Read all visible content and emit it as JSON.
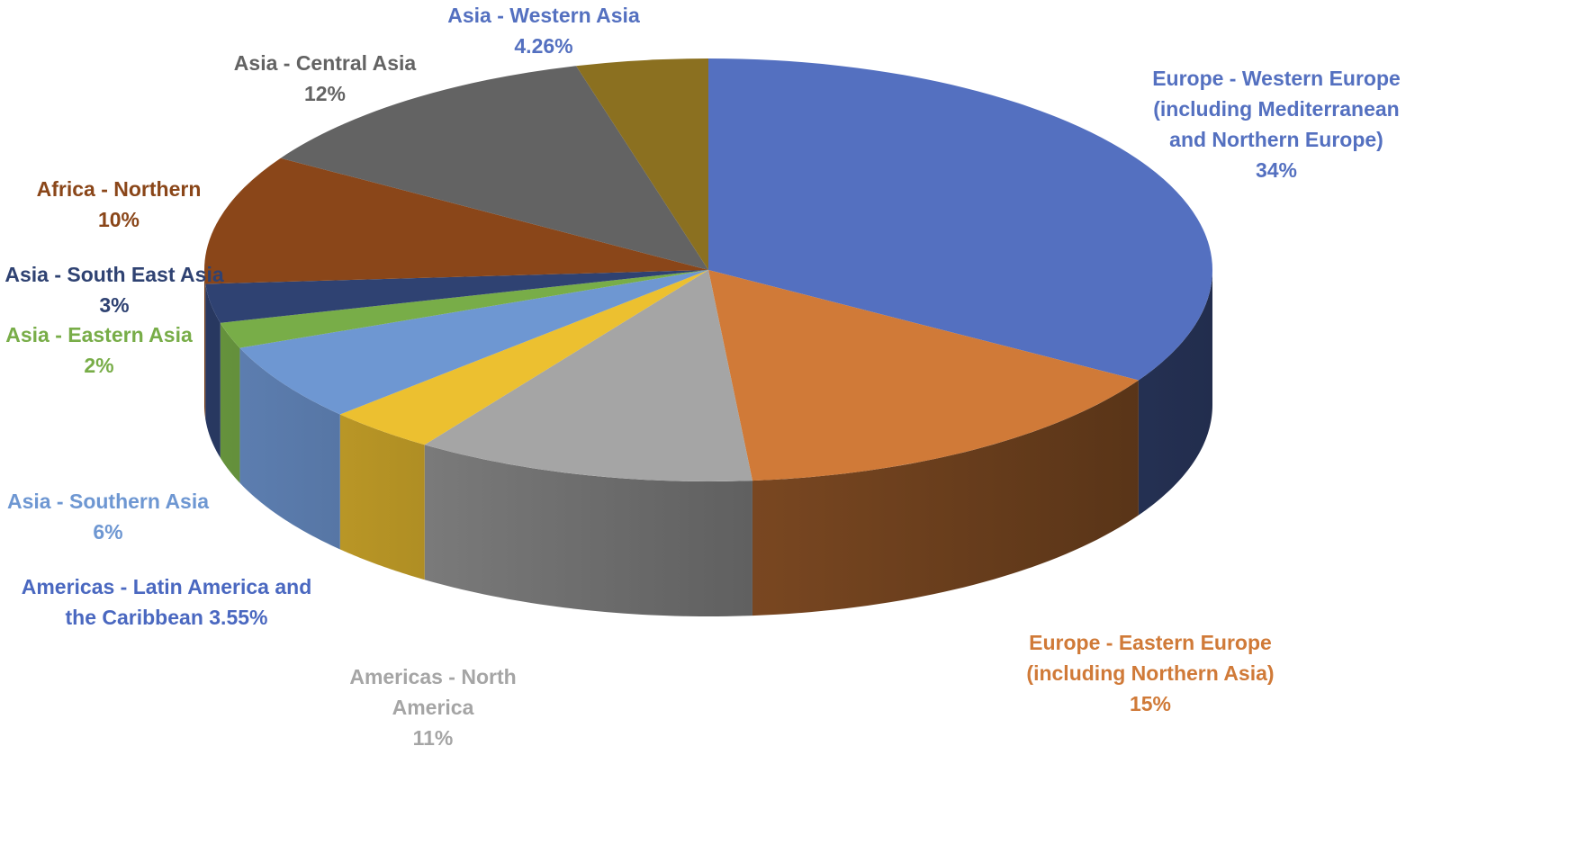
{
  "chart_data": {
    "type": "pie",
    "categories": [
      "Europe - Western Europe (including Mediterranean and Northern Europe)",
      "Europe - Eastern Europe (including Northern Asia)",
      "Americas - North America",
      "Americas - Latin America and the Caribbean",
      "Asia - Southern Asia",
      "Asia - Eastern Asia",
      "Asia - South East Asia",
      "Africa - Northern",
      "Asia - Central Asia",
      "Asia - Western Asia"
    ],
    "values": [
      34,
      15,
      11,
      3.55,
      6,
      2,
      3,
      10,
      12,
      4.26
    ],
    "value_labels": [
      "34%",
      "15%",
      "11%",
      "3.55%",
      "6%",
      "2%",
      "3%",
      "10%",
      "12%",
      "4.26%"
    ],
    "colors": [
      "#5470c0",
      "#d07a38",
      "#a5a5a5",
      "#ecc030",
      "#6e97d2",
      "#78ad48",
      "#2f4272",
      "#8a4619",
      "#636363",
      "#8b7020"
    ],
    "label_colors": [
      "#5470c0",
      "#d07a38",
      "#a5a5a5",
      "#4a68c0",
      "#6e97d2",
      "#78ad48",
      "#2f4272",
      "#8a4619",
      "#636363",
      "#5470c0"
    ]
  }
}
